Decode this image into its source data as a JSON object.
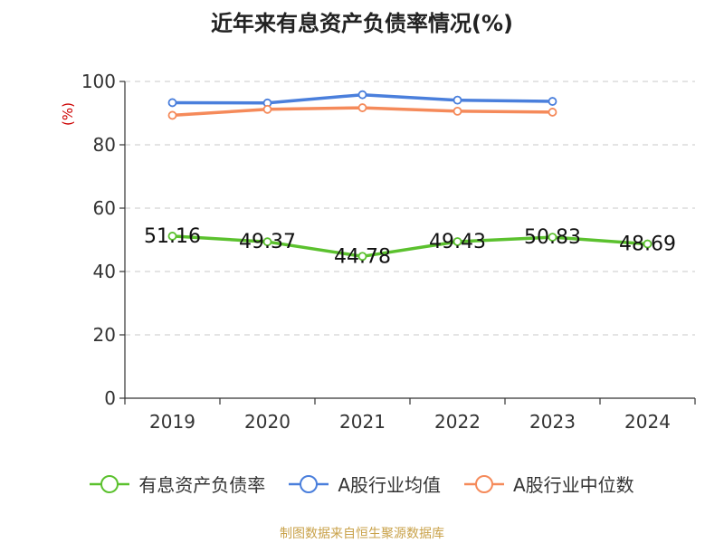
{
  "chart_data": {
    "type": "line",
    "title": "近年来有息资产负债率情况(%)",
    "ylabel": "(%)",
    "categories": [
      "2019",
      "2020",
      "2021",
      "2022",
      "2023",
      "2024"
    ],
    "ylim": [
      0,
      100
    ],
    "yticks": [
      0,
      20,
      40,
      60,
      80,
      100
    ],
    "grid": true,
    "legend_position": "bottom",
    "series": [
      {
        "name": "有息资产负债率",
        "color": "#5bc12e",
        "values": [
          51.16,
          49.37,
          44.78,
          49.43,
          50.83,
          48.69
        ],
        "data_labels": [
          "51.16",
          "49.37",
          "44.78",
          "49.43",
          "50.83",
          "48.69"
        ]
      },
      {
        "name": "A股行业均值",
        "color": "#4a7fdc",
        "values": [
          93.3,
          93.2,
          95.8,
          94.1,
          93.7,
          null
        ]
      },
      {
        "name": "A股行业中位数",
        "color": "#f58a5a",
        "values": [
          89.3,
          91.2,
          91.7,
          90.6,
          90.3,
          null
        ]
      }
    ]
  },
  "source": "制图数据来自恒生聚源数据库"
}
